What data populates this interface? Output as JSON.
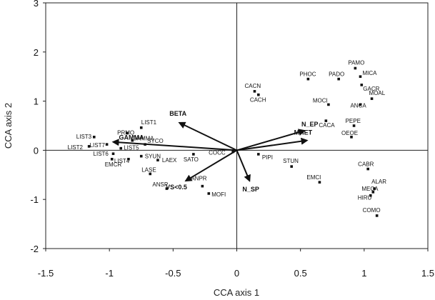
{
  "chart_data": {
    "type": "scatter",
    "xlabel": "CCA axis 1",
    "ylabel": "CCA axis 2",
    "xlim": [
      -1.5,
      1.5
    ],
    "ylim": [
      -2,
      3
    ],
    "xticks": [
      -1.5,
      -1,
      -0.5,
      0,
      0.5,
      1,
      1.5
    ],
    "yticks": [
      -2,
      -1,
      0,
      1,
      2,
      3
    ],
    "xtick_labels": [
      "-1.5",
      "-1",
      "-0.5",
      "0",
      "0.5",
      "1",
      "1.5"
    ],
    "ytick_labels": [
      "-2",
      "-1",
      "0",
      "1",
      "2",
      "3"
    ],
    "zero_lines": true,
    "species": [
      {
        "label": "PAMO",
        "x": 0.93,
        "y": 1.67
      },
      {
        "label": "MICA",
        "x": 0.97,
        "y": 1.5
      },
      {
        "label": "PADO",
        "x": 0.8,
        "y": 1.45
      },
      {
        "label": "PHOC",
        "x": 0.56,
        "y": 1.45
      },
      {
        "label": "GACR",
        "x": 0.98,
        "y": 1.33
      },
      {
        "label": "MOAL",
        "x": 1.06,
        "y": 1.05
      },
      {
        "label": "ANCA",
        "x": 0.97,
        "y": 0.93
      },
      {
        "label": "MOCI",
        "x": 0.72,
        "y": 0.93
      },
      {
        "label": "CACN",
        "x": 0.14,
        "y": 1.2
      },
      {
        "label": "CACH",
        "x": 0.17,
        "y": 1.13
      },
      {
        "label": "CACA",
        "x": 0.7,
        "y": 0.6
      },
      {
        "label": "PEPE",
        "x": 0.92,
        "y": 0.5
      },
      {
        "label": "OEOE",
        "x": 0.9,
        "y": 0.27
      },
      {
        "label": "LIST1",
        "x": -0.75,
        "y": 0.46
      },
      {
        "label": "PRMO",
        "x": -0.86,
        "y": 0.35
      },
      {
        "label": "LIST3",
        "x": -1.12,
        "y": 0.27
      },
      {
        "label": "LIST2",
        "x": -1.16,
        "y": 0.08
      },
      {
        "label": "LIST7",
        "x": -1.02,
        "y": 0.12
      },
      {
        "label": "GAMMA",
        "x": -0.82,
        "y": 0.2
      },
      {
        "label": "SYCO",
        "x": -0.72,
        "y": 0.12
      },
      {
        "label": "LIST5",
        "x": -0.91,
        "y": 0.04
      },
      {
        "label": "LIST6",
        "x": -0.97,
        "y": -0.07
      },
      {
        "label": "SYUN",
        "x": -0.75,
        "y": -0.12
      },
      {
        "label": "LIST4",
        "x": -0.85,
        "y": -0.18
      },
      {
        "label": "LAEX",
        "x": -0.62,
        "y": -0.2
      },
      {
        "label": "EMCR",
        "x": -0.98,
        "y": -0.18
      },
      {
        "label": "LASE",
        "x": -0.68,
        "y": -0.48
      },
      {
        "label": "SATO",
        "x": -0.34,
        "y": -0.08
      },
      {
        "label": "COCC",
        "x": -0.03,
        "y": -0.03
      },
      {
        "label": "PIPI",
        "x": 0.17,
        "y": -0.08
      },
      {
        "label": "STUN",
        "x": 0.43,
        "y": -0.33
      },
      {
        "label": "ANSP",
        "x": -0.55,
        "y": -0.78
      },
      {
        "label": "ANPR",
        "x": -0.27,
        "y": -0.73
      },
      {
        "label": "MOFI",
        "x": -0.22,
        "y": -0.88
      },
      {
        "label": "EMCI",
        "x": 0.65,
        "y": -0.65
      },
      {
        "label": "CABR",
        "x": 1.03,
        "y": -0.38
      },
      {
        "label": "ALAR",
        "x": 1.08,
        "y": -0.78
      },
      {
        "label": "MECA",
        "x": 1.07,
        "y": -0.85
      },
      {
        "label": "HIRU",
        "x": 1.05,
        "y": -0.92
      },
      {
        "label": "COMO",
        "x": 1.1,
        "y": -1.33
      }
    ],
    "vectors": [
      {
        "label": "BETA",
        "x": -0.45,
        "y": 0.56
      },
      {
        "label": "GAMMA",
        "x": -0.97,
        "y": 0.17
      },
      {
        "label": "N_EP",
        "x": 0.53,
        "y": 0.4
      },
      {
        "label": "MHET",
        "x": 0.55,
        "y": 0.2
      },
      {
        "label": "VS<0.5",
        "x": -0.4,
        "y": -0.62
      },
      {
        "label": "N_SP",
        "x": 0.1,
        "y": -0.62
      }
    ]
  }
}
